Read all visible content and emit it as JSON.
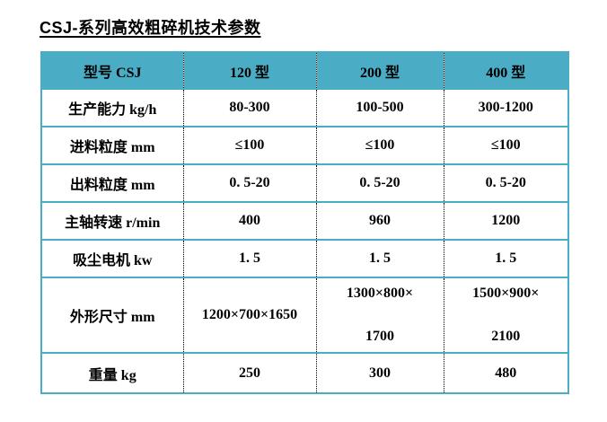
{
  "title": "CSJ-系列高效粗碎机技术参数",
  "colors": {
    "header_bg": "#4BACC6",
    "table_border": "#4BACC6",
    "column_dotted_line": "#000000",
    "text": "#000000",
    "page_bg": "#FFFFFF"
  },
  "table": {
    "header": {
      "label": "型号 CSJ",
      "columns": [
        "120 型",
        "200 型",
        "400 型"
      ]
    },
    "rows": [
      {
        "label": "生产能力 kg/h",
        "values": [
          "80-300",
          "100-500",
          "300-1200"
        ]
      },
      {
        "label": "进料粒度 mm",
        "values": [
          "≤100",
          "≤100",
          "≤100"
        ]
      },
      {
        "label": "出料粒度 mm",
        "values": [
          "0. 5-20",
          "0. 5-20",
          "0. 5-20"
        ]
      },
      {
        "label": "主轴转速 r/min",
        "values": [
          "400",
          "960",
          "1200"
        ]
      },
      {
        "label": "吸尘电机 kw",
        "values": [
          "1. 5",
          "1. 5",
          "1. 5"
        ]
      },
      {
        "label": "外形尺寸 mm",
        "values": [
          "1200×700×1650",
          "1300×800×",
          "1500×900×"
        ],
        "values_line2": [
          "",
          "1700",
          "2100"
        ]
      },
      {
        "label": "重量 kg",
        "values": [
          "250",
          "300",
          "480"
        ]
      }
    ]
  }
}
